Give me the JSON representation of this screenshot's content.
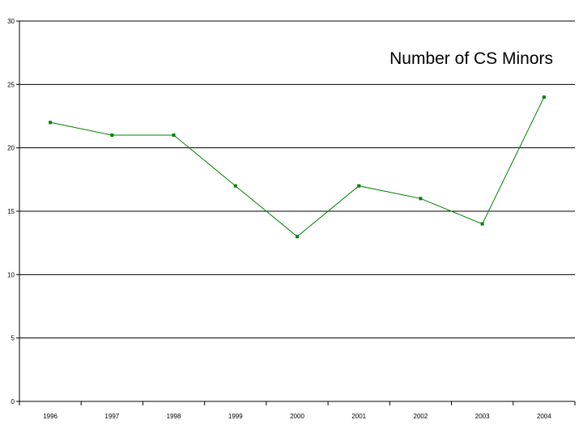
{
  "chart_data": {
    "type": "line",
    "title": "Number of CS Minors",
    "xlabel": "",
    "ylabel": "",
    "categories": [
      "1996",
      "1997",
      "1998",
      "1999",
      "2000",
      "2001",
      "2002",
      "2003",
      "2004"
    ],
    "series": [
      {
        "values": [
          22,
          21,
          21,
          17,
          13,
          17,
          16,
          14,
          24
        ]
      }
    ],
    "ylim": [
      0,
      30
    ],
    "yticks": [
      "0",
      "5",
      "10",
      "15",
      "20",
      "25",
      "30"
    ],
    "grid": true,
    "legend": "none",
    "colors": {
      "line": "#008000",
      "marker": "#008000",
      "grid": "#000000"
    }
  }
}
